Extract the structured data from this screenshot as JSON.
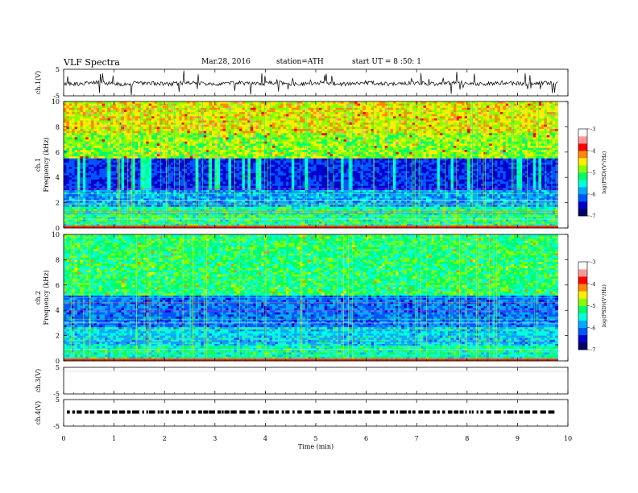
{
  "header": {
    "title": "VLF  Spectra",
    "date": "Mar.28, 2016",
    "station": "station=ATH",
    "start": "start  UT  =   8  :50: 1"
  },
  "chart_data": {
    "type": "heatmap",
    "x_axis": {
      "label": "Time  (min)",
      "range": [
        0,
        10
      ],
      "ticks": [
        "0",
        "1",
        "2",
        "3",
        "4",
        "5",
        "6",
        "7",
        "8",
        "9",
        "10"
      ]
    },
    "panels": [
      {
        "id": "ch1",
        "type": "line",
        "ylabel": "ch.1(V)",
        "yrange": [
          -5,
          5
        ],
        "ticks": [
          "5",
          "-5"
        ],
        "data_end_min": 9.8
      },
      {
        "id": "spec1",
        "type": "heatmap",
        "ylabel_top": "ch.1",
        "ylabel": "Frequency  (kHz)",
        "yrange": [
          0,
          10
        ],
        "ticks": [
          "0",
          "2",
          "4",
          "6",
          "8",
          "10"
        ]
      },
      {
        "id": "spec2",
        "type": "heatmap",
        "ylabel_top": "ch.2",
        "ylabel": "Frequency  (kHz)",
        "yrange": [
          0,
          10
        ],
        "ticks": [
          "0",
          "2",
          "4",
          "6",
          "8",
          "10"
        ]
      },
      {
        "id": "ch3",
        "type": "line",
        "ylabel": "ch.3(V)",
        "yrange": [
          -5,
          5
        ],
        "ticks": [
          "5",
          "-5"
        ]
      },
      {
        "id": "ch4",
        "type": "line",
        "ylabel": "ch.4(V)",
        "yrange": [
          -5,
          5
        ],
        "ticks": [
          "5",
          "-5"
        ]
      }
    ],
    "colorbar": {
      "label": "log(PSD)(V²/Hz)",
      "range": [
        -7,
        -3
      ],
      "ticks": [
        "-3",
        "-4",
        "-5",
        "-6",
        "-7"
      ],
      "colors": [
        "#000066",
        "#0000cc",
        "#0055ff",
        "#00aaff",
        "#00ffdd",
        "#00ff66",
        "#88ff00",
        "#ffee00",
        "#ff8800",
        "#ff0000",
        "#ff9999",
        "#ffffff"
      ]
    }
  }
}
